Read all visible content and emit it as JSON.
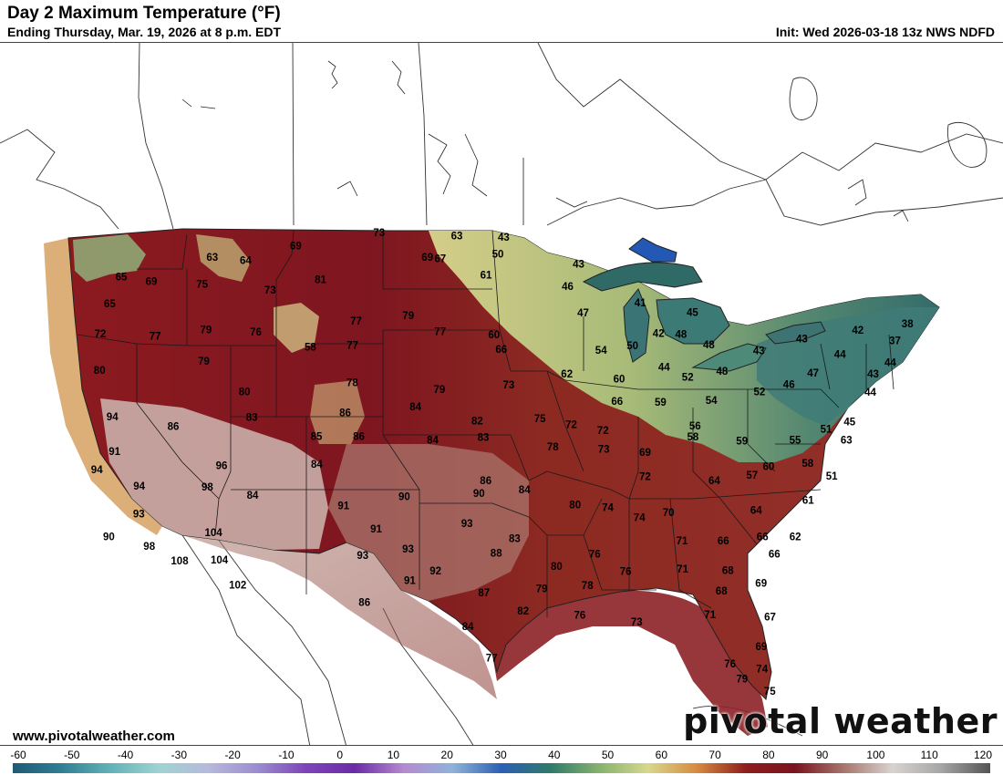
{
  "header": {
    "title": "Day 2 Maximum Temperature (°F)",
    "subtitle": "Ending Thursday, Mar. 19, 2026 at 8 p.m. EDT",
    "init": "Init: Wed 2026-03-18 13z NWS NDFD"
  },
  "footer": {
    "website": "www.pivotalweather.com",
    "brand": "pivotal weather"
  },
  "colorbar": {
    "ticks": [
      "-60",
      "-50",
      "-40",
      "-30",
      "-20",
      "-10",
      "0",
      "10",
      "20",
      "30",
      "40",
      "50",
      "60",
      "70",
      "80",
      "90",
      "100",
      "110",
      "120"
    ],
    "stops": [
      "#1f5a74",
      "#2f7f94",
      "#62b2b8",
      "#9fd3d2",
      "#b7b9dc",
      "#9b8dd0",
      "#7e43b9",
      "#6b2ba6",
      "#b58ad0",
      "#8fb3d8",
      "#2b5fb4",
      "#2f7a6a",
      "#86b26e",
      "#d7d88d",
      "#d78a3f",
      "#8e1d1d",
      "#7a1420",
      "#a7756b",
      "#d9d3d0",
      "#a5a5a5",
      "#545454"
    ]
  },
  "map": {
    "temperatures": [
      {
        "v": "65",
        "lon": -123.6,
        "lat": 47.6
      },
      {
        "v": "63",
        "lon": -117.4,
        "lat": 48.2
      },
      {
        "v": "69",
        "lon": -121.4,
        "lat": 47.2
      },
      {
        "v": "75",
        "lon": -117.8,
        "lat": 46.8
      },
      {
        "v": "64",
        "lon": -115.0,
        "lat": 47.9
      },
      {
        "v": "69",
        "lon": -111.6,
        "lat": 48.5
      },
      {
        "v": "73",
        "lon": -105.8,
        "lat": 49.0
      },
      {
        "v": "63",
        "lon": -100.3,
        "lat": 48.7
      },
      {
        "v": "43",
        "lon": -97.0,
        "lat": 48.6
      },
      {
        "v": "50",
        "lon": -97.4,
        "lat": 47.7
      },
      {
        "v": "69",
        "lon": -102.3,
        "lat": 47.6
      },
      {
        "v": "67",
        "lon": -101.4,
        "lat": 47.5
      },
      {
        "v": "65",
        "lon": -124.0,
        "lat": 46.2
      },
      {
        "v": "73",
        "lon": -113.0,
        "lat": 46.2
      },
      {
        "v": "81",
        "lon": -109.6,
        "lat": 46.6
      },
      {
        "v": "61",
        "lon": -98.2,
        "lat": 46.6
      },
      {
        "v": "43",
        "lon": -91.8,
        "lat": 47.2
      },
      {
        "v": "46",
        "lon": -92.6,
        "lat": 46.0
      },
      {
        "v": "72",
        "lon": -124.2,
        "lat": 44.6
      },
      {
        "v": "77",
        "lon": -120.4,
        "lat": 44.2
      },
      {
        "v": "79",
        "lon": -117.0,
        "lat": 44.3
      },
      {
        "v": "76",
        "lon": -113.6,
        "lat": 44.0
      },
      {
        "v": "58",
        "lon": -109.8,
        "lat": 43.0
      },
      {
        "v": "77",
        "lon": -106.9,
        "lat": 44.3
      },
      {
        "v": "79",
        "lon": -103.4,
        "lat": 44.5
      },
      {
        "v": "77",
        "lon": -101.2,
        "lat": 43.6
      },
      {
        "v": "60",
        "lon": -97.6,
        "lat": 43.4
      },
      {
        "v": "47",
        "lon": -91.6,
        "lat": 44.6
      },
      {
        "v": "41",
        "lon": -87.7,
        "lat": 45.2
      },
      {
        "v": "45",
        "lon": -84.2,
        "lat": 44.8
      },
      {
        "v": "80",
        "lon": -123.7,
        "lat": 42.6
      },
      {
        "v": "79",
        "lon": -116.8,
        "lat": 42.6
      },
      {
        "v": "77",
        "lon": -107.0,
        "lat": 43.0
      },
      {
        "v": "66",
        "lon": -97.1,
        "lat": 42.6
      },
      {
        "v": "54",
        "lon": -90.5,
        "lat": 42.6
      },
      {
        "v": "50",
        "lon": -88.4,
        "lat": 42.9
      },
      {
        "v": "42",
        "lon": -86.6,
        "lat": 43.6
      },
      {
        "v": "48",
        "lon": -85.1,
        "lat": 43.6
      },
      {
        "v": "48",
        "lon": -83.3,
        "lat": 43.1
      },
      {
        "v": "43",
        "lon": -80.0,
        "lat": 42.9
      },
      {
        "v": "43",
        "lon": -77.0,
        "lat": 43.7
      },
      {
        "v": "42",
        "lon": -73.1,
        "lat": 44.4
      },
      {
        "v": "38",
        "lon": -69.6,
        "lat": 45.0
      },
      {
        "v": "37",
        "lon": -70.7,
        "lat": 44.0
      },
      {
        "v": "44",
        "lon": -74.6,
        "lat": 43.0
      },
      {
        "v": "44",
        "lon": -71.3,
        "lat": 42.8
      },
      {
        "v": "43",
        "lon": -72.6,
        "lat": 42.1
      },
      {
        "v": "47",
        "lon": -76.6,
        "lat": 41.9
      },
      {
        "v": "44",
        "lon": -86.4,
        "lat": 41.8
      },
      {
        "v": "48",
        "lon": -82.6,
        "lat": 41.7
      },
      {
        "v": "62",
        "lon": -92.8,
        "lat": 41.3
      },
      {
        "v": "60",
        "lon": -89.4,
        "lat": 41.1
      },
      {
        "v": "52",
        "lon": -84.9,
        "lat": 41.3
      },
      {
        "v": "52",
        "lon": -80.3,
        "lat": 40.7
      },
      {
        "v": "46",
        "lon": -78.3,
        "lat": 41.2
      },
      {
        "v": "44",
        "lon": -73.0,
        "lat": 41.1
      },
      {
        "v": "94",
        "lon": -122.2,
        "lat": 40.0
      },
      {
        "v": "80",
        "lon": -113.8,
        "lat": 40.8
      },
      {
        "v": "78",
        "lon": -106.8,
        "lat": 41.0
      },
      {
        "v": "79",
        "lon": -101.1,
        "lat": 40.5
      },
      {
        "v": "73",
        "lon": -96.6,
        "lat": 40.7
      },
      {
        "v": "66",
        "lon": -89.6,
        "lat": 39.9
      },
      {
        "v": "59",
        "lon": -86.8,
        "lat": 39.9
      },
      {
        "v": "54",
        "lon": -83.5,
        "lat": 40.1
      },
      {
        "v": "86",
        "lon": -118.1,
        "lat": 39.2
      },
      {
        "v": "83",
        "lon": -113.1,
        "lat": 39.4
      },
      {
        "v": "86",
        "lon": -107.1,
        "lat": 39.4
      },
      {
        "v": "84",
        "lon": -102.6,
        "lat": 39.6
      },
      {
        "v": "82",
        "lon": -98.6,
        "lat": 38.8
      },
      {
        "v": "75",
        "lon": -94.6,
        "lat": 38.9
      },
      {
        "v": "72",
        "lon": -92.6,
        "lat": 38.6
      },
      {
        "v": "72",
        "lon": -90.6,
        "lat": 38.3
      },
      {
        "v": "56",
        "lon": -84.7,
        "lat": 38.7
      },
      {
        "v": "58",
        "lon": -84.9,
        "lat": 38.1
      },
      {
        "v": "59",
        "lon": -81.8,
        "lat": 38.0
      },
      {
        "v": "55",
        "lon": -78.4,
        "lat": 38.2
      },
      {
        "v": "51",
        "lon": -76.3,
        "lat": 38.9
      },
      {
        "v": "63",
        "lon": -75.1,
        "lat": 38.4
      },
      {
        "v": "45",
        "lon": -74.7,
        "lat": 39.4
      },
      {
        "v": "91",
        "lon": -121.6,
        "lat": 38.1
      },
      {
        "v": "85",
        "lon": -108.8,
        "lat": 38.2
      },
      {
        "v": "86",
        "lon": -106.1,
        "lat": 38.1
      },
      {
        "v": "84",
        "lon": -101.4,
        "lat": 37.8
      },
      {
        "v": "83",
        "lon": -98.2,
        "lat": 37.9
      },
      {
        "v": "78",
        "lon": -93.8,
        "lat": 37.4
      },
      {
        "v": "73",
        "lon": -90.6,
        "lat": 37.3
      },
      {
        "v": "69",
        "lon": -88.0,
        "lat": 37.2
      },
      {
        "v": "60",
        "lon": -80.3,
        "lat": 36.7
      },
      {
        "v": "58",
        "lon": -77.8,
        "lat": 37.0
      },
      {
        "v": "94",
        "lon": -122.5,
        "lat": 37.2
      },
      {
        "v": "96",
        "lon": -114.6,
        "lat": 36.9
      },
      {
        "v": "94",
        "lon": -119.6,
        "lat": 36.1
      },
      {
        "v": "98",
        "lon": -115.3,
        "lat": 35.8
      },
      {
        "v": "84",
        "lon": -108.6,
        "lat": 36.7
      },
      {
        "v": "86",
        "lon": -98.0,
        "lat": 35.6
      },
      {
        "v": "84",
        "lon": -95.6,
        "lat": 35.1
      },
      {
        "v": "72",
        "lon": -88.1,
        "lat": 35.9
      },
      {
        "v": "64",
        "lon": -83.8,
        "lat": 35.8
      },
      {
        "v": "57",
        "lon": -81.4,
        "lat": 36.2
      },
      {
        "v": "61",
        "lon": -78.1,
        "lat": 35.0
      },
      {
        "v": "51",
        "lon": -76.4,
        "lat": 36.4
      },
      {
        "v": "93",
        "lon": -119.3,
        "lat": 34.6
      },
      {
        "v": "84",
        "lon": -112.4,
        "lat": 35.2
      },
      {
        "v": "91",
        "lon": -106.7,
        "lat": 34.4
      },
      {
        "v": "90",
        "lon": -103.0,
        "lat": 34.8
      },
      {
        "v": "90",
        "lon": -98.4,
        "lat": 34.9
      },
      {
        "v": "80",
        "lon": -92.5,
        "lat": 34.3
      },
      {
        "v": "74",
        "lon": -90.5,
        "lat": 34.2
      },
      {
        "v": "74",
        "lon": -88.6,
        "lat": 33.7
      },
      {
        "v": "70",
        "lon": -86.8,
        "lat": 34.0
      },
      {
        "v": "64",
        "lon": -81.4,
        "lat": 34.3
      },
      {
        "v": "90",
        "lon": -120.9,
        "lat": 33.5
      },
      {
        "v": "104",
        "lon": -114.5,
        "lat": 33.3
      },
      {
        "v": "91",
        "lon": -104.6,
        "lat": 33.1
      },
      {
        "v": "93",
        "lon": -99.1,
        "lat": 33.3
      },
      {
        "v": "83",
        "lon": -96.2,
        "lat": 32.5
      },
      {
        "v": "71",
        "lon": -86.1,
        "lat": 32.5
      },
      {
        "v": "66",
        "lon": -83.6,
        "lat": 32.6
      },
      {
        "v": "66",
        "lon": -81.2,
        "lat": 32.9
      },
      {
        "v": "62",
        "lon": -79.2,
        "lat": 33.0
      },
      {
        "v": "98",
        "lon": -118.3,
        "lat": 32.8
      },
      {
        "v": "108",
        "lon": -116.3,
        "lat": 31.9
      },
      {
        "v": "104",
        "lon": -113.9,
        "lat": 31.8
      },
      {
        "v": "93",
        "lon": -105.3,
        "lat": 31.7
      },
      {
        "v": "93",
        "lon": -102.6,
        "lat": 32.0
      },
      {
        "v": "88",
        "lon": -97.3,
        "lat": 31.7
      },
      {
        "v": "76",
        "lon": -91.4,
        "lat": 31.7
      },
      {
        "v": "66",
        "lon": -80.6,
        "lat": 32.0
      },
      {
        "v": "102",
        "lon": -112.6,
        "lat": 30.4
      },
      {
        "v": "92",
        "lon": -100.9,
        "lat": 30.8
      },
      {
        "v": "80",
        "lon": -93.7,
        "lat": 31.0
      },
      {
        "v": "76",
        "lon": -89.6,
        "lat": 30.8
      },
      {
        "v": "71",
        "lon": -86.2,
        "lat": 31.0
      },
      {
        "v": "68",
        "lon": -83.5,
        "lat": 31.0
      },
      {
        "v": "91",
        "lon": -102.4,
        "lat": 30.3
      },
      {
        "v": "78",
        "lon": -91.9,
        "lat": 30.0
      },
      {
        "v": "69",
        "lon": -81.6,
        "lat": 30.4
      },
      {
        "v": "87",
        "lon": -98.0,
        "lat": 29.6
      },
      {
        "v": "79",
        "lon": -94.6,
        "lat": 29.8
      },
      {
        "v": "68",
        "lon": -84.0,
        "lat": 29.9
      },
      {
        "v": "86",
        "lon": -105.0,
        "lat": 29.2
      },
      {
        "v": "82",
        "lon": -95.7,
        "lat": 28.6
      },
      {
        "v": "76",
        "lon": -92.4,
        "lat": 28.4
      },
      {
        "v": "73",
        "lon": -89.1,
        "lat": 28.1
      },
      {
        "v": "71",
        "lon": -84.8,
        "lat": 28.6
      },
      {
        "v": "67",
        "lon": -81.3,
        "lat": 28.6
      },
      {
        "v": "84",
        "lon": -98.9,
        "lat": 27.8
      },
      {
        "v": "69",
        "lon": -82.0,
        "lat": 27.0
      },
      {
        "v": "77",
        "lon": -97.5,
        "lat": 26.1
      },
      {
        "v": "76",
        "lon": -83.9,
        "lat": 26.0
      },
      {
        "v": "74",
        "lon": -82.1,
        "lat": 25.8
      },
      {
        "v": "79",
        "lon": -83.3,
        "lat": 25.2
      },
      {
        "v": "75",
        "lon": -81.8,
        "lat": 24.6
      }
    ]
  }
}
